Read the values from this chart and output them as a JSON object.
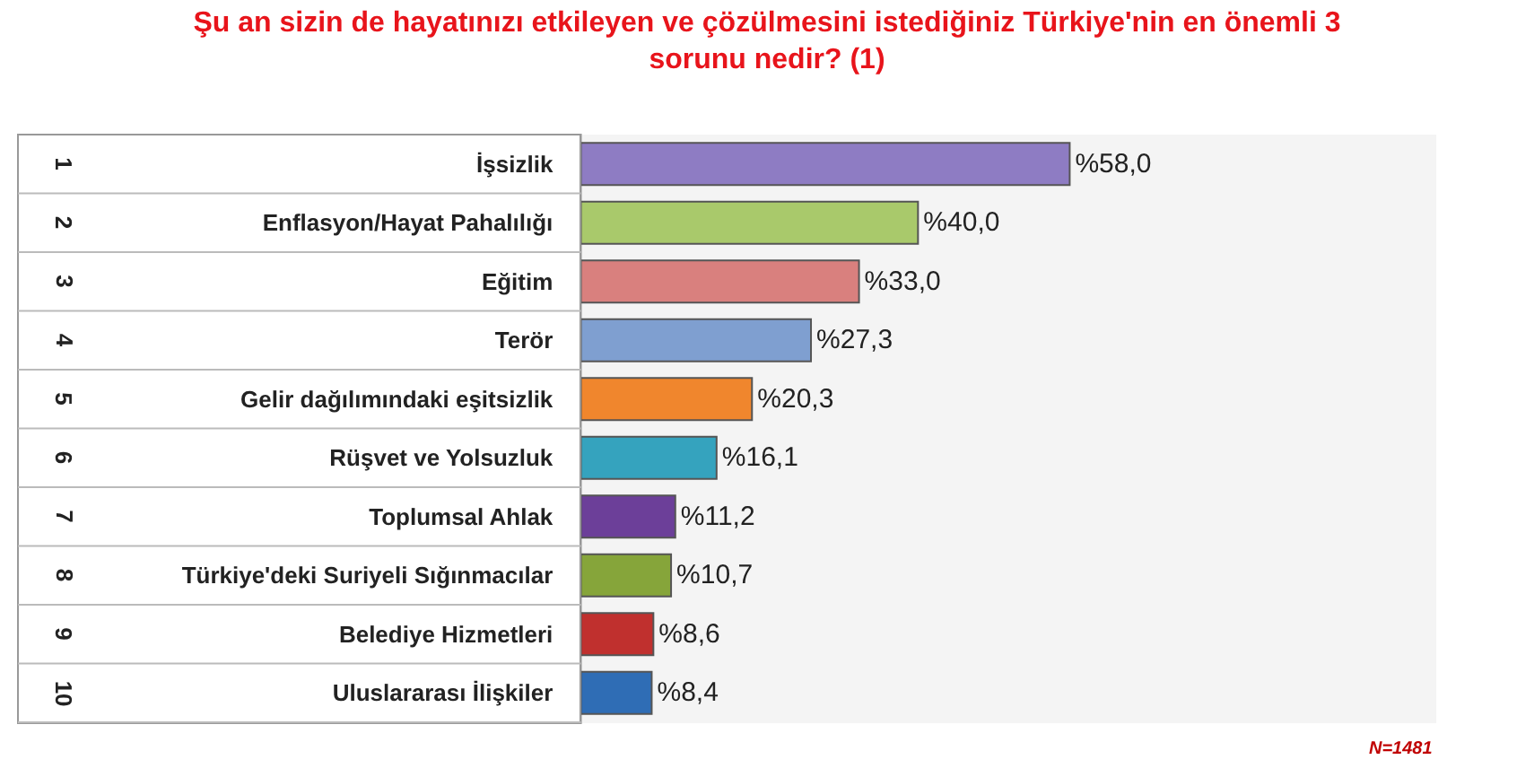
{
  "chart_data": {
    "type": "bar",
    "orientation": "horizontal",
    "title": "Şu an sizin de hayatınızı etkileyen ve çözülmesini istediğiniz Türkiye'nin en önemli 3 sorunu nedir? (1)",
    "categories": [
      "İşsizlik",
      "Enflasyon/Hayat Pahalılığı",
      "Eğitim",
      "Terör",
      "Gelir dağılımındaki eşitsizlik",
      "Rüşvet ve Yolsuzluk",
      "Toplumsal Ahlak",
      "Türkiye'deki Suriyeli Sığınmacılar",
      "Belediye Hizmetleri",
      "Uluslararası İlişkiler"
    ],
    "values": [
      58.0,
      40.0,
      33.0,
      27.3,
      20.3,
      16.1,
      11.2,
      10.7,
      8.6,
      8.4
    ],
    "colors": [
      "#8e7cc3",
      "#a9c96b",
      "#d9807e",
      "#7f9fd0",
      "#f0862d",
      "#35a3be",
      "#6c3f99",
      "#86a53a",
      "#c0302e",
      "#2f6db5"
    ],
    "value_labels": [
      "%58,0",
      "%40,0",
      "%33,0",
      "%27,3",
      "%20,3",
      "%16,1",
      "%11,2",
      "%10,7",
      "%8,6",
      "%8,4"
    ],
    "annotations": [
      "1",
      "2",
      "3",
      "4",
      "5",
      "6",
      "7",
      "8",
      "9",
      "10",
      "N=1481"
    ],
    "grid": false,
    "legend": false
  }
}
